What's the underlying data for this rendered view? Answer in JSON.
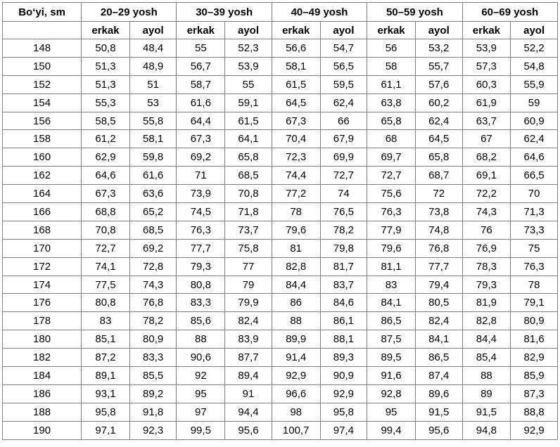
{
  "table": {
    "corner_header": "Bo‘yi, sm",
    "groups": [
      "20–29 yosh",
      "30–39 yosh",
      "40–49 yosh",
      "50–59 yosh",
      "60–69 yosh"
    ],
    "subheaders": [
      "erkak",
      "ayol",
      "erkak",
      "ayol",
      "erkak",
      "ayol",
      "erkak",
      "ayol",
      "erkak",
      "ayol"
    ],
    "rows": [
      [
        "148",
        "50,8",
        "48,4",
        "55",
        "52,3",
        "56,6",
        "54,7",
        "56",
        "53,2",
        "53,9",
        "52,2"
      ],
      [
        "150",
        "51,3",
        "48,9",
        "56,7",
        "53,9",
        "58,1",
        "56,5",
        "58",
        "55,7",
        "57,3",
        "54,8"
      ],
      [
        "152",
        "51,3",
        "51",
        "58,7",
        "55",
        "61,5",
        "59,5",
        "61,1",
        "57,6",
        "60,3",
        "55,9"
      ],
      [
        "154",
        "55,3",
        "53",
        "61,6",
        "59,1",
        "64,5",
        "62,4",
        "63,8",
        "60,2",
        "61,9",
        "59"
      ],
      [
        "156",
        "58,5",
        "55,8",
        "64,4",
        "61,5",
        "67,3",
        "66",
        "65,8",
        "62,4",
        "63,7",
        "60,9"
      ],
      [
        "158",
        "61,2",
        "58,1",
        "67,3",
        "64,1",
        "70,4",
        "67,9",
        "68",
        "64,5",
        "67",
        "62,4"
      ],
      [
        "160",
        "62,9",
        "59,8",
        "69,2",
        "65,8",
        "72,3",
        "69,9",
        "69,7",
        "65,8",
        "68,2",
        "64,6"
      ],
      [
        "162",
        "64,6",
        "61,6",
        "71",
        "68,5",
        "74,4",
        "72,7",
        "72,7",
        "68,7",
        "69,1",
        "66,5"
      ],
      [
        "164",
        "67,3",
        "63,6",
        "73,9",
        "70,8",
        "77,2",
        "74",
        "75,6",
        "72",
        "72,2",
        "70"
      ],
      [
        "166",
        "68,8",
        "65,2",
        "74,5",
        "71,8",
        "78",
        "76,5",
        "76,3",
        "73,8",
        "74,3",
        "71,3"
      ],
      [
        "168",
        "70,8",
        "68,5",
        "76,3",
        "73,7",
        "79,6",
        "78,2",
        "77,9",
        "74,8",
        "76",
        "73,3"
      ],
      [
        "170",
        "72,7",
        "69,2",
        "77,7",
        "75,8",
        "81",
        "79,8",
        "79,6",
        "76,8",
        "76,9",
        "75"
      ],
      [
        "172",
        "74,1",
        "72,8",
        "79,3",
        "77",
        "82,8",
        "81,7",
        "81,1",
        "77,7",
        "78,3",
        "76,3"
      ],
      [
        "174",
        "77,5",
        "74,3",
        "80,8",
        "79",
        "84,4",
        "83,7",
        "83",
        "79,4",
        "79,3",
        "78"
      ],
      [
        "176",
        "80,8",
        "76,8",
        "83,3",
        "79,9",
        "86",
        "84,6",
        "84,1",
        "80,5",
        "81,9",
        "79,1"
      ],
      [
        "178",
        "83",
        "78,2",
        "85,6",
        "82,4",
        "88",
        "86,1",
        "86,5",
        "82,4",
        "82,8",
        "80,9"
      ],
      [
        "180",
        "85,1",
        "80,9",
        "88",
        "83,9",
        "89,9",
        "88,1",
        "87,5",
        "84,1",
        "84,4",
        "81,6"
      ],
      [
        "182",
        "87,2",
        "83,3",
        "90,6",
        "87,7",
        "91,4",
        "89,3",
        "89,5",
        "86,5",
        "85,4",
        "82,9"
      ],
      [
        "184",
        "89,1",
        "85,5",
        "92",
        "89,4",
        "92,9",
        "90,9",
        "91,6",
        "87,4",
        "88",
        "85,9"
      ],
      [
        "186",
        "93,1",
        "89,2",
        "95",
        "91",
        "96,6",
        "92,9",
        "92,8",
        "89,6",
        "89",
        "87,3"
      ],
      [
        "188",
        "95,8",
        "91,8",
        "97",
        "94,4",
        "98",
        "95,8",
        "95",
        "91,5",
        "91,5",
        "88,8"
      ],
      [
        "190",
        "97,1",
        "92,3",
        "99,5",
        "95,6",
        "100,7",
        "97,4",
        "99,4",
        "95,6",
        "94,8",
        "92,9"
      ]
    ]
  }
}
